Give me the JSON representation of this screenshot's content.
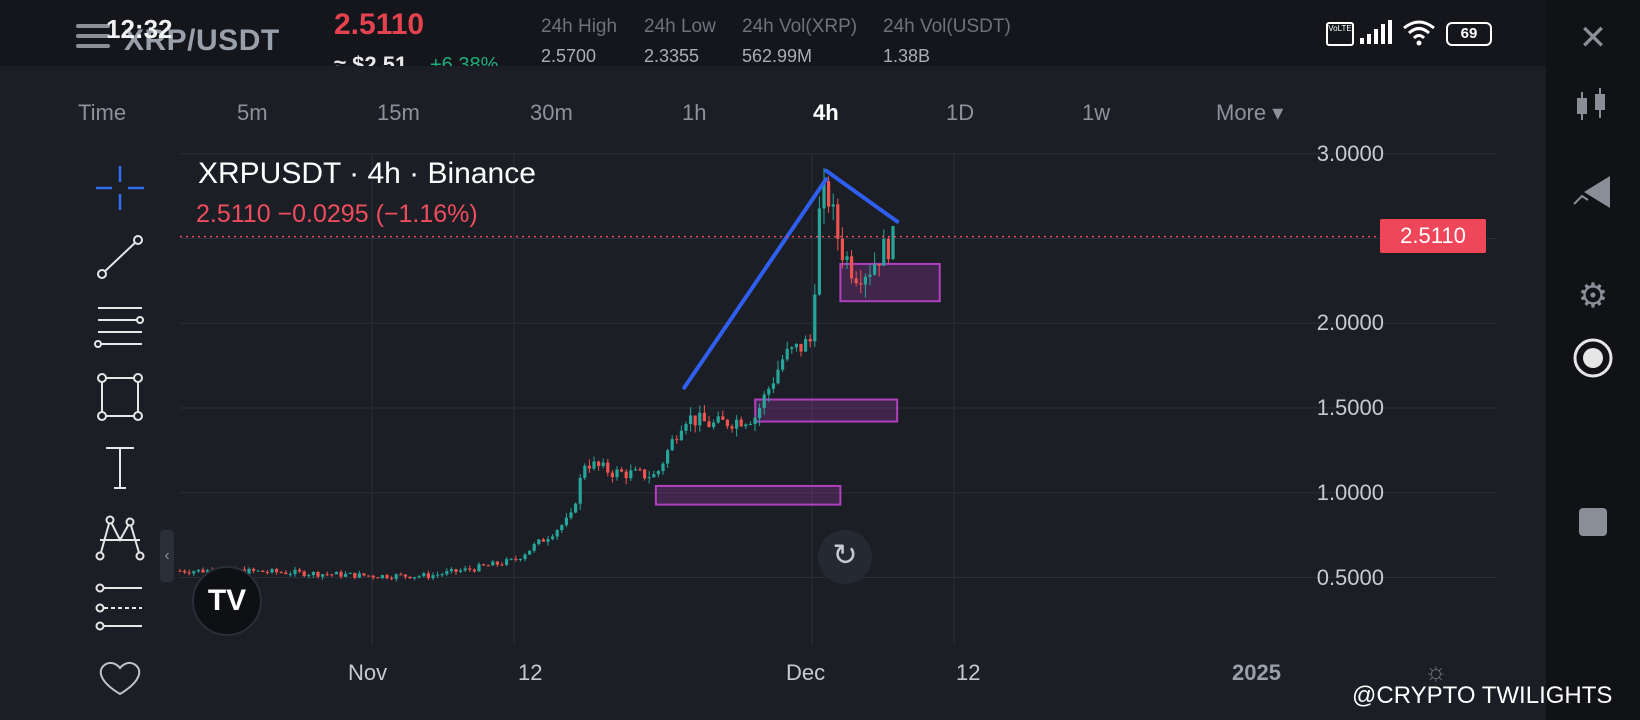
{
  "status_bar": {
    "time": "12:32",
    "battery": "69",
    "network": "VoLTE"
  },
  "header": {
    "pair": "XRP/USDT",
    "last_price": "2.5110",
    "price_usd": "≈ $2.51",
    "change_pct": "+6.38%",
    "stats": [
      {
        "label": "24h High",
        "value": "2.5700"
      },
      {
        "label": "24h Low",
        "value": "2.3355"
      },
      {
        "label": "24h Vol(XRP)",
        "value": "562.99M"
      },
      {
        "label": "24h Vol(USDT)",
        "value": "1.38B"
      }
    ]
  },
  "timeframes": [
    "Time",
    "5m",
    "15m",
    "30m",
    "1h",
    "4h",
    "1D",
    "1w",
    "More ▾"
  ],
  "active_timeframe": "4h",
  "legend": {
    "title": "XRPUSDT · 4h · Binance",
    "values": "2.5110  −0.0295 (−1.16%)"
  },
  "current_price_tag": "2.5110",
  "watermark": "@CRYPTO TWILIGHTS",
  "colors": {
    "up": "#26a69a",
    "down": "#ef5350",
    "trendline": "#2f5ff0",
    "zone": "#b040c0",
    "price_tag": "#f0465a"
  },
  "icons": {
    "right_panel": [
      "close-icon",
      "candles-icon",
      "chart-triangle-icon",
      "gear-icon",
      "record-icon",
      "stop-icon"
    ],
    "tools": [
      "crosshair-icon",
      "trendline-icon",
      "fib-lines-icon",
      "rectangle-icon",
      "text-icon",
      "pattern-icon",
      "forecast-icon",
      "favorites-icon"
    ]
  },
  "chart_data": {
    "type": "candlestick",
    "symbol": "XRPUSDT",
    "interval": "4h",
    "exchange": "Binance",
    "y_ticks": [
      "3.0000",
      "2.5000",
      "2.0000",
      "1.5000",
      "1.0000",
      "0.5000"
    ],
    "x_ticks": [
      "Nov",
      "12",
      "Dec",
      "12",
      "2025"
    ],
    "ylim": [
      0.1,
      3.1
    ],
    "last_price": 2.511,
    "trend": [
      {
        "date": "Oct 22",
        "close": 0.54
      },
      {
        "date": "Oct 26",
        "close": 0.53
      },
      {
        "date": "Nov 1",
        "close": 0.51
      },
      {
        "date": "Nov 5",
        "close": 0.51
      },
      {
        "date": "Nov 8",
        "close": 0.55
      },
      {
        "date": "Nov 11",
        "close": 0.6
      },
      {
        "date": "Nov 13",
        "close": 0.72
      },
      {
        "date": "Nov 15",
        "close": 0.85
      },
      {
        "date": "Nov 16",
        "close": 1.18
      },
      {
        "date": "Nov 18",
        "close": 1.12
      },
      {
        "date": "Nov 21",
        "close": 1.1
      },
      {
        "date": "Nov 23",
        "close": 1.45
      },
      {
        "date": "Nov 25",
        "close": 1.4
      },
      {
        "date": "Nov 28",
        "close": 1.45
      },
      {
        "date": "Nov 30",
        "close": 1.8
      },
      {
        "date": "Dec 2",
        "close": 1.9
      },
      {
        "date": "Dec 2b",
        "close": 2.6
      },
      {
        "date": "Dec 3",
        "close": 2.8
      },
      {
        "date": "Dec 4",
        "close": 2.45
      },
      {
        "date": "Dec 5",
        "close": 2.3
      },
      {
        "date": "Dec 6",
        "close": 2.32
      },
      {
        "date": "Dec 7",
        "close": 2.43
      },
      {
        "date": "Dec 8",
        "close": 2.51
      }
    ],
    "trendlines": [
      {
        "from": {
          "date": "Nov 23",
          "value": 1.62
        },
        "to": {
          "date": "Dec 3",
          "value": 2.85
        }
      },
      {
        "from": {
          "date": "Dec 3",
          "value": 2.9
        },
        "to": {
          "date": "Dec 8",
          "value": 2.6
        }
      }
    ],
    "zones": [
      {
        "from": "Dec 4",
        "to": "Dec 11",
        "low": 2.13,
        "high": 2.35
      },
      {
        "from": "Nov 28",
        "to": "Dec 8",
        "low": 1.42,
        "high": 1.55
      },
      {
        "from": "Nov 21",
        "to": "Dec 4",
        "low": 0.93,
        "high": 1.04
      }
    ]
  }
}
